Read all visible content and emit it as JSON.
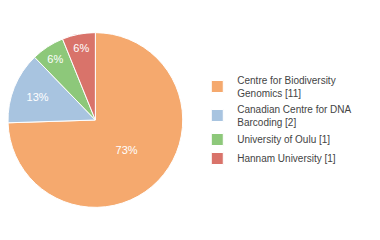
{
  "chart_data": {
    "type": "pie",
    "categories": [
      "Centre for Biodiversity\nGenomics [11]",
      "Canadian Centre for DNA\nBarcoding [2]",
      "University of Oulu [1]",
      "Hannam University [1]"
    ],
    "values": [
      73,
      13,
      6,
      6
    ],
    "value_labels": [
      "73%",
      "13%",
      "6%",
      "6%"
    ],
    "data_labels": true,
    "colors": [
      "#F5A96E",
      "#A8C4E0",
      "#8DC87A",
      "#D9736A"
    ],
    "legend": "right"
  }
}
